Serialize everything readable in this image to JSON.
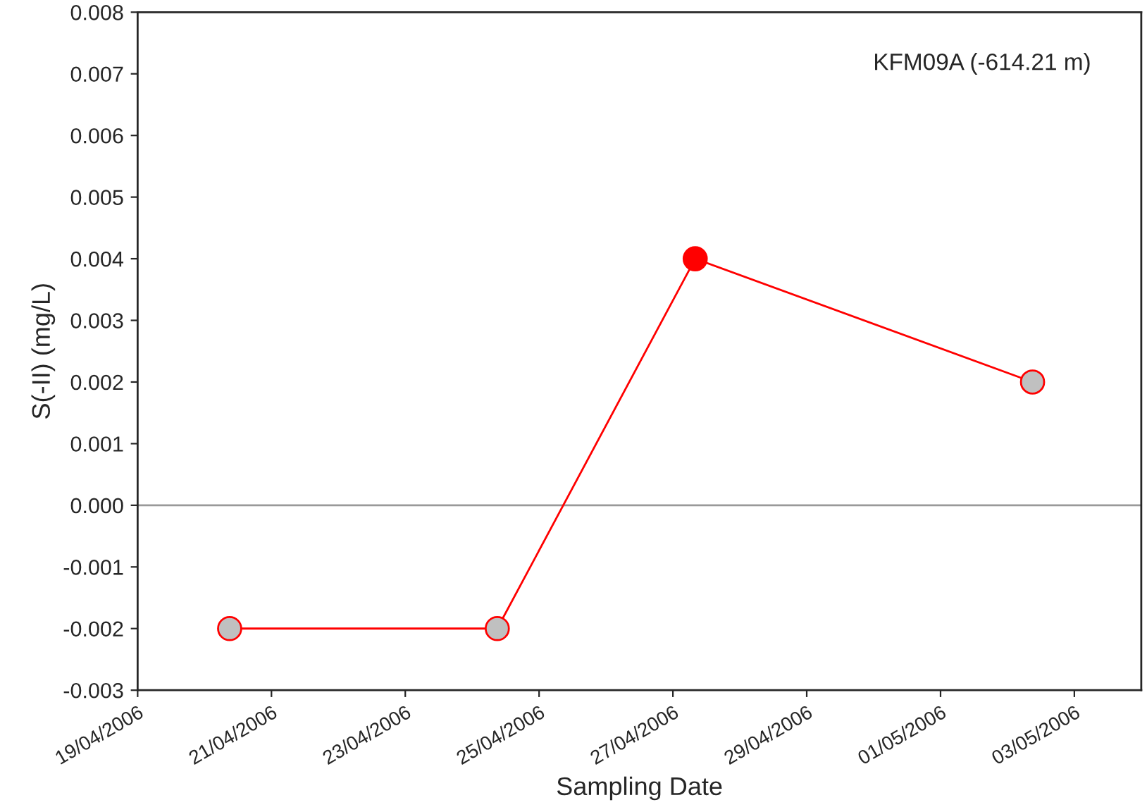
{
  "chart_data": {
    "type": "line",
    "xlabel": "Sampling Date",
    "ylabel": "S(-II) (mg/L)",
    "annotations": [
      "KFM09A (-614.21 m)"
    ],
    "x": [
      "2006-04-20T09:00",
      "2006-04-24T09:00",
      "2006-04-27T08:00",
      "2006-05-02T09:00"
    ],
    "series": [
      {
        "color": "#ff0000",
        "colors": [
          "#c0c0c0",
          "#c0c0c0",
          "#ff0000",
          "#c0c0c0"
        ],
        "values": [
          -0.002,
          -0.002,
          0.004,
          0.002
        ]
      }
    ],
    "marker": "circle",
    "line_style": "solid",
    "grid": false,
    "legend": false,
    "xlim": [
      "2006-04-19",
      "2006-05-04"
    ],
    "xticks": [
      {
        "value": "2006-04-19",
        "label": "19/04/2006"
      },
      {
        "value": "2006-04-21",
        "label": "21/04/2006"
      },
      {
        "value": "2006-04-23",
        "label": "23/04/2006"
      },
      {
        "value": "2006-04-25",
        "label": "25/04/2006"
      },
      {
        "value": "2006-04-27",
        "label": "27/04/2006"
      },
      {
        "value": "2006-04-29",
        "label": "29/04/2006"
      },
      {
        "value": "2006-05-01",
        "label": "01/05/2006"
      },
      {
        "value": "2006-05-03",
        "label": "03/05/2006"
      }
    ],
    "ylim": [
      -0.003,
      0.008
    ],
    "yticks": [
      {
        "value": -0.003,
        "label": "-0.003"
      },
      {
        "value": -0.002,
        "label": "-0.002"
      },
      {
        "value": -0.001,
        "label": "-0.001"
      },
      {
        "value": 0,
        "label": "0.000"
      },
      {
        "value": 0.001,
        "label": "0.001"
      },
      {
        "value": 0.002,
        "label": "0.002"
      },
      {
        "value": 0.003,
        "label": "0.003"
      },
      {
        "value": 0.004,
        "label": "0.004"
      },
      {
        "value": 0.005,
        "label": "0.005"
      },
      {
        "value": 0.006,
        "label": "0.006"
      },
      {
        "value": 0.007,
        "label": "0.007"
      },
      {
        "value": 0.008,
        "label": "0.008"
      }
    ],
    "ref_lines": [
      {
        "axis": "y",
        "value": 0,
        "color": "#999999",
        "line_style": "solid"
      }
    ]
  }
}
